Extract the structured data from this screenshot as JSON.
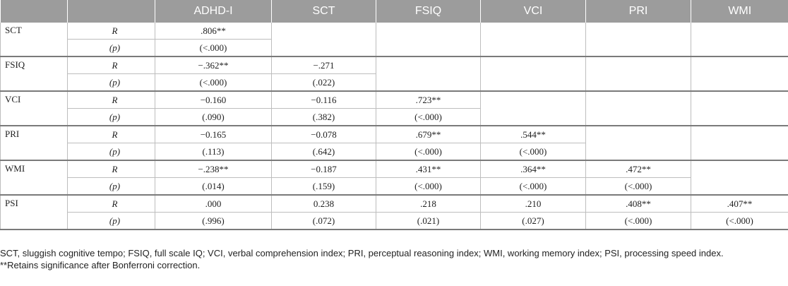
{
  "table": {
    "headers": [
      "",
      "",
      "ADHD-I",
      "SCT",
      "FSIQ",
      "VCI",
      "PRI",
      "WMI"
    ],
    "rows": [
      {
        "label": "SCT",
        "r_label": "R",
        "p_label": "(p)",
        "r": [
          ".806**"
        ],
        "p": [
          "(<.000)"
        ]
      },
      {
        "label": "FSIQ",
        "r_label": "R",
        "p_label": "(p)",
        "r": [
          "−.362**",
          "−.271"
        ],
        "p": [
          "(<.000)",
          "(.022)"
        ]
      },
      {
        "label": "VCI",
        "r_label": "R",
        "p_label": "(p)",
        "r": [
          "−0.160",
          "−0.116",
          ".723**"
        ],
        "p": [
          "(.090)",
          "(.382)",
          "(<.000)"
        ]
      },
      {
        "label": "PRI",
        "r_label": "R",
        "p_label": "(p)",
        "r": [
          "−0.165",
          "−0.078",
          ".679**",
          ".544**"
        ],
        "p": [
          "(.113)",
          "(.642)",
          "(<.000)",
          "(<.000)"
        ]
      },
      {
        "label": "WMI",
        "r_label": "R",
        "p_label": "(p)",
        "r": [
          "−.238**",
          "−0.187",
          ".431**",
          ".364**",
          ".472**"
        ],
        "p": [
          "(.014)",
          "(.159)",
          "(<.000)",
          "(<.000)",
          "(<.000)"
        ]
      },
      {
        "label": "PSI",
        "r_label": "R",
        "p_label": "(p)",
        "r": [
          ".000",
          "0.238",
          ".218",
          ".210",
          ".408**",
          ".407**"
        ],
        "p": [
          "(.996)",
          "(.072)",
          "(.021)",
          "(.027)",
          "(<.000)",
          "(<.000)"
        ]
      }
    ]
  },
  "notes": {
    "abbreviations": "SCT, sluggish cognitive tempo; FSIQ, full scale IQ; VCI, verbal comprehension index; PRI, perceptual reasoning index; WMI, working memory index; PSI, processing speed index.",
    "significance": "**Retains significance after Bonferroni correction."
  }
}
